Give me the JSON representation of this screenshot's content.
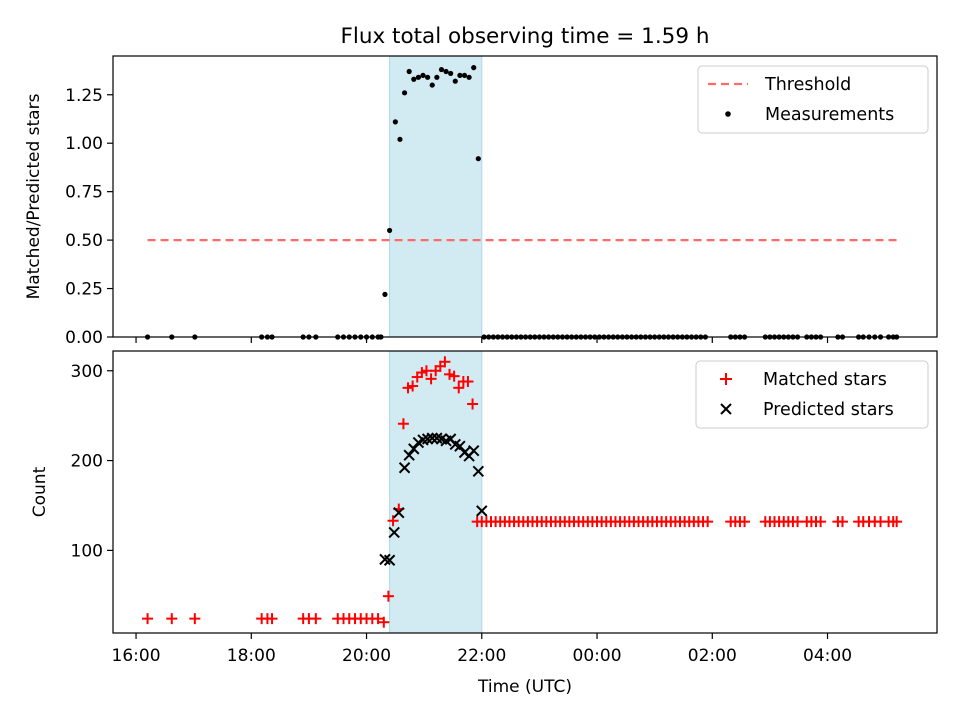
{
  "title": "Flux total observing time = 1.59 h",
  "colors": {
    "threshold": "#ff6b6b",
    "matched": "#ff0000",
    "predicted": "#000000",
    "shade": "#add8e6",
    "measure": "#000000"
  },
  "chart_data": [
    {
      "type": "scatter",
      "ylabel": "Matched/Predicted stars",
      "xlim": [
        15.6,
        29.9
      ],
      "ylim": [
        0,
        1.45
      ],
      "yticks": [
        0,
        0.25,
        0.5,
        0.75,
        1.0,
        1.25
      ],
      "ytick_labels": [
        "0.00",
        "0.25",
        "0.50",
        "0.75",
        "1.00",
        "1.25"
      ],
      "grid": false,
      "legend": "top-right",
      "shaded_interval": [
        20.4,
        22.0
      ],
      "threshold": {
        "name": "Threshold",
        "value": 0.5,
        "x_range": [
          16.2,
          29.2
        ]
      },
      "series": [
        {
          "name": "Measurements",
          "x": [
            16.2,
            16.62,
            17.02,
            18.18,
            18.28,
            18.36,
            18.9,
            19.0,
            19.12,
            19.5,
            19.6,
            19.7,
            19.8,
            19.9,
            20.0,
            20.1,
            20.2,
            20.25,
            20.32,
            20.4,
            20.5,
            20.58,
            20.66,
            20.74,
            20.82,
            20.9,
            20.98,
            21.06,
            21.14,
            21.22,
            21.3,
            21.38,
            21.46,
            21.54,
            21.62,
            21.7,
            21.78,
            21.86,
            21.94,
            22.04,
            22.12,
            22.2,
            22.28,
            22.36,
            22.44,
            22.52,
            22.6,
            22.68,
            22.76,
            22.84,
            22.92,
            23.0,
            23.08,
            23.16,
            23.24,
            23.32,
            23.4,
            23.48,
            23.56,
            23.64,
            23.72,
            23.8,
            23.88,
            23.96,
            24.04,
            24.12,
            24.2,
            24.28,
            24.36,
            24.44,
            24.52,
            24.6,
            24.68,
            24.76,
            24.84,
            24.92,
            25.0,
            25.08,
            25.16,
            25.24,
            25.32,
            25.4,
            25.48,
            25.56,
            25.64,
            25.72,
            25.8,
            25.88,
            26.32,
            26.4,
            26.48,
            26.56,
            26.92,
            27.0,
            27.08,
            27.16,
            27.24,
            27.32,
            27.4,
            27.48,
            27.64,
            27.72,
            27.8,
            27.88,
            28.18,
            28.26,
            28.54,
            28.62,
            28.72,
            28.82,
            28.92,
            29.06,
            29.14,
            29.2
          ],
          "y": [
            0,
            0,
            0,
            0,
            0,
            0,
            0,
            0,
            0,
            0,
            0,
            0,
            0,
            0,
            0,
            0,
            0,
            0,
            0.22,
            0.55,
            1.11,
            1.02,
            1.26,
            1.37,
            1.33,
            1.34,
            1.35,
            1.34,
            1.3,
            1.34,
            1.38,
            1.37,
            1.36,
            1.32,
            1.35,
            1.35,
            1.34,
            1.39,
            0.92,
            0,
            0,
            0,
            0,
            0,
            0,
            0,
            0,
            0,
            0,
            0,
            0,
            0,
            0,
            0,
            0,
            0,
            0,
            0,
            0,
            0,
            0,
            0,
            0,
            0,
            0,
            0,
            0,
            0,
            0,
            0,
            0,
            0,
            0,
            0,
            0,
            0,
            0,
            0,
            0,
            0,
            0,
            0,
            0,
            0,
            0,
            0,
            0,
            0,
            0,
            0,
            0,
            0,
            0,
            0,
            0,
            0,
            0,
            0,
            0,
            0,
            0,
            0,
            0,
            0,
            0,
            0,
            0,
            0,
            0,
            0,
            0,
            0,
            0,
            0
          ]
        }
      ]
    },
    {
      "type": "scatter",
      "ylabel": "Count",
      "xlabel": "Time (UTC)",
      "xlim": [
        15.6,
        29.9
      ],
      "ylim": [
        8,
        322
      ],
      "xticks": [
        16,
        18,
        20,
        22,
        24,
        26,
        28
      ],
      "xtick_labels": [
        "16:00",
        "18:00",
        "20:00",
        "22:00",
        "00:00",
        "02:00",
        "04:00"
      ],
      "yticks": [
        100,
        200,
        300
      ],
      "ytick_labels": [
        "100",
        "200",
        "300"
      ],
      "grid": false,
      "legend": "top-right",
      "shaded_interval": [
        20.4,
        22.0
      ],
      "series": [
        {
          "name": "Matched stars",
          "marker": "plus",
          "x": [
            16.2,
            16.62,
            17.02,
            18.18,
            18.28,
            18.36,
            18.9,
            19.0,
            19.12,
            19.5,
            19.6,
            19.7,
            19.8,
            19.9,
            20.0,
            20.1,
            20.2,
            20.3,
            20.38,
            20.46,
            20.56,
            20.64,
            20.72,
            20.8,
            20.88,
            20.96,
            21.04,
            21.12,
            21.2,
            21.28,
            21.36,
            21.44,
            21.52,
            21.6,
            21.68,
            21.76,
            21.84,
            21.92,
            22.0,
            22.08,
            22.16,
            22.24,
            22.32,
            22.4,
            22.48,
            22.56,
            22.64,
            22.72,
            22.8,
            22.88,
            22.96,
            23.04,
            23.12,
            23.2,
            23.28,
            23.36,
            23.44,
            23.52,
            23.6,
            23.68,
            23.76,
            23.84,
            23.92,
            24.0,
            24.08,
            24.16,
            24.24,
            24.32,
            24.4,
            24.48,
            24.56,
            24.64,
            24.72,
            24.8,
            24.88,
            24.96,
            25.04,
            25.12,
            25.2,
            25.28,
            25.36,
            25.44,
            25.52,
            25.6,
            25.68,
            25.76,
            25.84,
            25.92,
            26.32,
            26.4,
            26.48,
            26.56,
            26.92,
            27.0,
            27.08,
            27.16,
            27.24,
            27.32,
            27.4,
            27.48,
            27.64,
            27.72,
            27.8,
            27.88,
            28.18,
            28.26,
            28.54,
            28.62,
            28.72,
            28.82,
            28.92,
            29.06,
            29.14,
            29.2
          ],
          "y": [
            24,
            24,
            24,
            24,
            24,
            24,
            24,
            24,
            24,
            24,
            24,
            24,
            24,
            24,
            24,
            24,
            24,
            20,
            49,
            133,
            146,
            241,
            281,
            283,
            293,
            298,
            300,
            291,
            300,
            305,
            310,
            296,
            294,
            281,
            288,
            288,
            263,
            132,
            132,
            132,
            132,
            132,
            132,
            132,
            132,
            132,
            132,
            132,
            132,
            132,
            132,
            132,
            132,
            132,
            132,
            132,
            132,
            132,
            132,
            132,
            132,
            132,
            132,
            132,
            132,
            132,
            132,
            132,
            132,
            132,
            132,
            132,
            132,
            132,
            132,
            132,
            132,
            132,
            132,
            132,
            132,
            132,
            132,
            132,
            132,
            132,
            132,
            132,
            132,
            132,
            132,
            132,
            132,
            132,
            132,
            132,
            132,
            132,
            132,
            132,
            132,
            132,
            132,
            132,
            132,
            132,
            132,
            132,
            132,
            132,
            132,
            132,
            132,
            132
          ]
        },
        {
          "name": "Predicted stars",
          "marker": "x",
          "x": [
            20.32,
            20.4,
            20.48,
            20.56,
            20.66,
            20.74,
            20.82,
            20.9,
            20.98,
            21.06,
            21.14,
            21.22,
            21.3,
            21.38,
            21.46,
            21.54,
            21.62,
            21.7,
            21.78,
            21.86,
            21.94,
            22.0
          ],
          "y": [
            90,
            89,
            120,
            142,
            192,
            206,
            213,
            220,
            223,
            224,
            225,
            225,
            224,
            222,
            224,
            218,
            216,
            209,
            205,
            211,
            188,
            144
          ]
        }
      ]
    }
  ]
}
